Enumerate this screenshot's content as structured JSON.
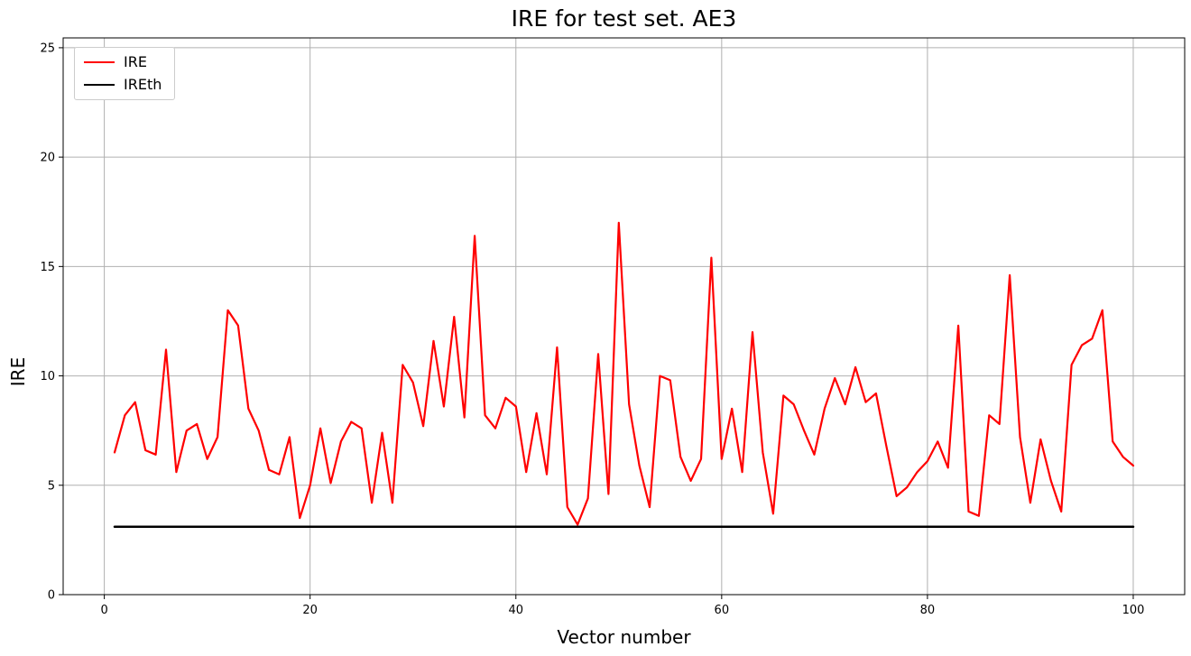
{
  "chart_data": {
    "type": "line",
    "title": "IRE for test set. AE3",
    "xlabel": "Vector number",
    "ylabel": "IRE",
    "xlim": [
      -4,
      105
    ],
    "ylim": [
      0,
      25.45
    ],
    "x_ticks": [
      0,
      20,
      40,
      60,
      80,
      100
    ],
    "y_ticks": [
      0,
      5,
      10,
      15,
      20,
      25
    ],
    "grid": true,
    "grid_color": "#b0b0b0",
    "legend_position": "upper-left",
    "x": [
      1,
      2,
      3,
      4,
      5,
      6,
      7,
      8,
      9,
      10,
      11,
      12,
      13,
      14,
      15,
      16,
      17,
      18,
      19,
      20,
      21,
      22,
      23,
      24,
      25,
      26,
      27,
      28,
      29,
      30,
      31,
      32,
      33,
      34,
      35,
      36,
      37,
      38,
      39,
      40,
      41,
      42,
      43,
      44,
      45,
      46,
      47,
      48,
      49,
      50,
      51,
      52,
      53,
      54,
      55,
      56,
      57,
      58,
      59,
      60,
      61,
      62,
      63,
      64,
      65,
      66,
      67,
      68,
      69,
      70,
      71,
      72,
      73,
      74,
      75,
      76,
      77,
      78,
      79,
      80,
      81,
      82,
      83,
      84,
      85,
      86,
      87,
      88,
      89,
      90,
      91,
      92,
      93,
      94,
      95,
      96,
      97,
      98,
      99,
      100
    ],
    "series": [
      {
        "name": "IRE",
        "color": "#ff0000",
        "width": 2.2,
        "values": [
          6.5,
          8.2,
          8.8,
          6.6,
          6.4,
          11.2,
          5.6,
          7.5,
          7.8,
          6.2,
          7.2,
          13.0,
          12.3,
          8.5,
          7.5,
          5.7,
          5.5,
          7.2,
          3.5,
          5.0,
          7.6,
          5.1,
          7.0,
          7.9,
          7.6,
          4.2,
          7.4,
          4.2,
          10.5,
          9.7,
          7.7,
          11.6,
          8.6,
          12.7,
          8.1,
          16.4,
          8.2,
          7.6,
          9.0,
          8.6,
          5.6,
          8.3,
          5.5,
          11.3,
          4.0,
          3.2,
          4.4,
          11.0,
          4.6,
          17.0,
          8.7,
          5.9,
          4.0,
          10.0,
          9.8,
          6.3,
          5.2,
          6.2,
          15.4,
          6.2,
          8.5,
          5.6,
          12.0,
          6.5,
          3.7,
          9.1,
          8.7,
          7.5,
          6.4,
          8.5,
          9.9,
          8.7,
          10.4,
          8.8,
          9.2,
          6.8,
          4.5,
          4.9,
          5.6,
          6.1,
          7.0,
          5.8,
          12.3,
          3.8,
          3.6,
          8.2,
          7.8,
          14.6,
          7.2,
          4.2,
          7.1,
          5.2,
          3.8,
          10.5,
          11.4,
          11.7,
          13.0,
          7.0,
          6.3,
          5.9
        ]
      },
      {
        "name": "IREth",
        "color": "#000000",
        "width": 2.5,
        "constant": 3.1
      }
    ]
  },
  "legend": {
    "ire_label": "IRE",
    "ireth_label": "IREth"
  }
}
